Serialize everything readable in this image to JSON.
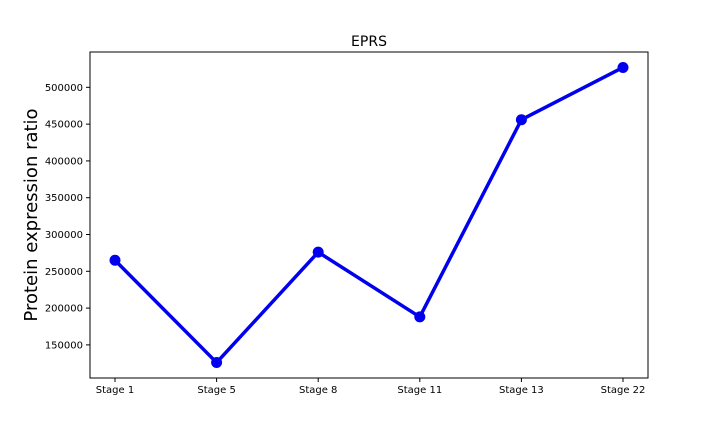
{
  "chart_data": {
    "type": "line",
    "title": "EPRS",
    "xlabel": "",
    "ylabel": "Protein expression ratio",
    "categories": [
      "Stage 1",
      "Stage 5",
      "Stage 8",
      "Stage 11",
      "Stage 13",
      "Stage 22"
    ],
    "series": [
      {
        "values": [
          265000,
          126000,
          276000,
          188000,
          456000,
          527000
        ],
        "color": "#0000ee"
      }
    ],
    "ylim": [
      105000,
      548000
    ],
    "yticks": [
      150000,
      200000,
      250000,
      300000,
      350000,
      400000,
      450000,
      500000
    ],
    "grid": false,
    "legend": "none"
  }
}
